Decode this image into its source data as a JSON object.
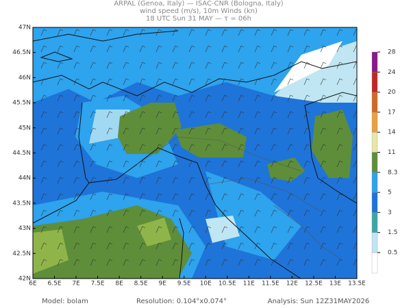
{
  "header": {
    "lines": [
      "ARPAL (Genoa, Italy)  —  ISAC-CNR (Bologna, Italy)",
      "wind speed (m/s), 10m Winds (kn)",
      "18 UTC Sun 31 MAY  —  τ = 06h"
    ]
  },
  "map": {
    "lon_range": [
      6,
      13.5
    ],
    "lat_range": [
      42,
      47
    ],
    "lon_ticks": [
      {
        "value": 6,
        "label": "6E"
      },
      {
        "value": 6.5,
        "label": "6.5E"
      },
      {
        "value": 7,
        "label": "7E"
      },
      {
        "value": 7.5,
        "label": "7.5E"
      },
      {
        "value": 8,
        "label": "8E"
      },
      {
        "value": 8.5,
        "label": "8.5E"
      },
      {
        "value": 9,
        "label": "9E"
      },
      {
        "value": 9.5,
        "label": "9.5E"
      },
      {
        "value": 10,
        "label": "10E"
      },
      {
        "value": 10.5,
        "label": "10.5E"
      },
      {
        "value": 11,
        "label": "11E"
      },
      {
        "value": 11.5,
        "label": "11.5E"
      },
      {
        "value": 12,
        "label": "12E"
      },
      {
        "value": 12.5,
        "label": "12.5E"
      },
      {
        "value": 13,
        "label": "13E"
      },
      {
        "value": 13.5,
        "label": "13.5E"
      }
    ],
    "lat_ticks": [
      {
        "value": 42,
        "label": "42N"
      },
      {
        "value": 42.5,
        "label": "42.5N"
      },
      {
        "value": 43,
        "label": "43N"
      },
      {
        "value": 43.5,
        "label": "43.5N"
      },
      {
        "value": 44,
        "label": "44N"
      },
      {
        "value": 44.5,
        "label": "44.5N"
      },
      {
        "value": 45,
        "label": "45N"
      },
      {
        "value": 45.5,
        "label": "45.5N"
      },
      {
        "value": 46,
        "label": "46N"
      },
      {
        "value": 46.5,
        "label": "46.5N"
      },
      {
        "value": 47,
        "label": "47N"
      }
    ]
  },
  "colorbar": {
    "levels": [
      0.5,
      1.5,
      3,
      5,
      8.3,
      11,
      14,
      17,
      20,
      24,
      28
    ],
    "colors": [
      "#ffffff",
      "#bfe6f2",
      "#3aa7a8",
      "#1e74d8",
      "#2ea3ee",
      "#5e8e3a",
      "#e8e6a8",
      "#e8a040",
      "#d06a28",
      "#c02828",
      "#8a1a8a",
      "#b090e0"
    ]
  },
  "footer": {
    "model": "Model: bolam",
    "resolution": "Resolution: 0.104°x0.074°",
    "analysis": "Analysis: Sun 12Z31MAY2026"
  }
}
